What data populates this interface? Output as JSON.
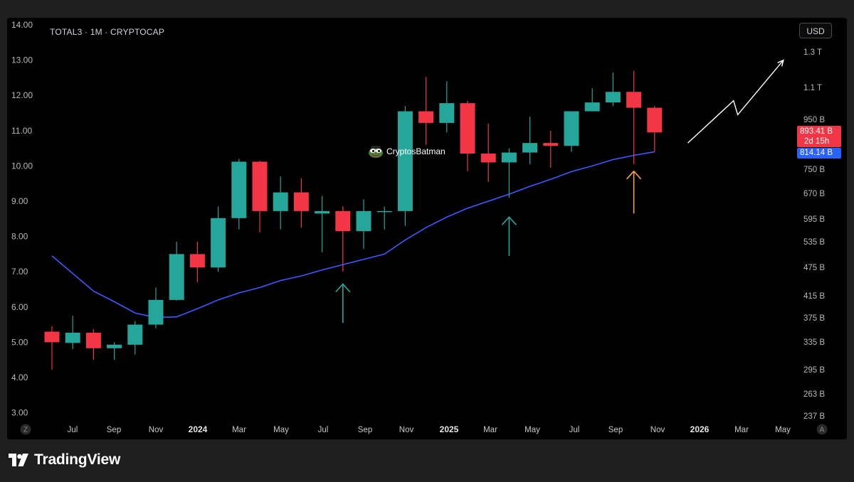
{
  "header": {
    "symbol_line": "TOTAL3 · 1M · CRYPTOCAP"
  },
  "currency_label": "USD",
  "watermark": "CryptosBatman",
  "brand": "TradingView",
  "price_tags": {
    "last_price": "893.41 B",
    "countdown": "2d 15h",
    "ma_value": "814.14 B"
  },
  "colors": {
    "up": "#26a69a",
    "down": "#f23645",
    "ma": "#3d5afe",
    "arrow_green": "#26a69a",
    "arrow_orange": "#f7a04b",
    "projection": "#ffffff"
  },
  "chart_data": {
    "type": "candlestick",
    "left_axis_ticks": [
      "14.00",
      "13.00",
      "12.00",
      "11.00",
      "10.00",
      "9.00",
      "8.00",
      "7.00",
      "6.00",
      "5.00",
      "4.00",
      "3.00"
    ],
    "right_axis_ticks": [
      "1.3 T",
      "1.1 T",
      "950 B",
      "750 B",
      "670 B",
      "595 B",
      "535 B",
      "475 B",
      "415 B",
      "375 B",
      "335 B",
      "295 B",
      "263 B",
      "237 B"
    ],
    "x_axis_labels": [
      "Jul",
      "Sep",
      "Nov",
      "2024",
      "Mar",
      "May",
      "Jul",
      "Sep",
      "Nov",
      "2025",
      "Mar",
      "May",
      "Jul",
      "Sep",
      "Nov",
      "2026",
      "Mar",
      "May"
    ],
    "year_labels": [
      "2024",
      "2025",
      "2026"
    ],
    "corner_left": "Z",
    "corner_right": "A",
    "candles": [
      {
        "o": 5.3,
        "h": 5.45,
        "l": 4.22,
        "c": 5.0
      },
      {
        "o": 4.98,
        "h": 5.75,
        "l": 4.8,
        "c": 5.27
      },
      {
        "o": 5.27,
        "h": 5.37,
        "l": 4.5,
        "c": 4.83
      },
      {
        "o": 4.83,
        "h": 5.0,
        "l": 4.5,
        "c": 4.93
      },
      {
        "o": 4.93,
        "h": 5.6,
        "l": 4.65,
        "c": 5.5
      },
      {
        "o": 5.5,
        "h": 6.55,
        "l": 5.4,
        "c": 6.2
      },
      {
        "o": 6.2,
        "h": 7.85,
        "l": 6.18,
        "c": 7.5
      },
      {
        "o": 7.5,
        "h": 7.85,
        "l": 6.7,
        "c": 7.12
      },
      {
        "o": 7.12,
        "h": 8.85,
        "l": 7.0,
        "c": 8.52
      },
      {
        "o": 8.52,
        "h": 10.2,
        "l": 8.2,
        "c": 10.12
      },
      {
        "o": 10.12,
        "h": 10.15,
        "l": 8.12,
        "c": 8.72
      },
      {
        "o": 8.72,
        "h": 9.7,
        "l": 8.2,
        "c": 9.25
      },
      {
        "o": 9.25,
        "h": 9.65,
        "l": 8.25,
        "c": 8.72
      },
      {
        "o": 8.65,
        "h": 9.15,
        "l": 7.55,
        "c": 8.72
      },
      {
        "o": 8.72,
        "h": 8.85,
        "l": 7.0,
        "c": 8.15
      },
      {
        "o": 8.15,
        "h": 9.05,
        "l": 7.65,
        "c": 8.72
      },
      {
        "o": 8.72,
        "h": 8.85,
        "l": 8.2,
        "c": 8.72
      },
      {
        "o": 8.72,
        "h": 11.7,
        "l": 8.3,
        "c": 11.55
      },
      {
        "o": 11.55,
        "h": 12.52,
        "l": 10.6,
        "c": 11.22
      },
      {
        "o": 11.22,
        "h": 12.4,
        "l": 10.95,
        "c": 11.78
      },
      {
        "o": 11.78,
        "h": 11.85,
        "l": 9.85,
        "c": 10.35
      },
      {
        "o": 10.35,
        "h": 11.2,
        "l": 9.55,
        "c": 10.1
      },
      {
        "o": 10.1,
        "h": 10.5,
        "l": 9.1,
        "c": 10.38
      },
      {
        "o": 10.38,
        "h": 11.4,
        "l": 10.05,
        "c": 10.65
      },
      {
        "o": 10.65,
        "h": 11.0,
        "l": 9.95,
        "c": 10.57
      },
      {
        "o": 10.57,
        "h": 11.55,
        "l": 10.4,
        "c": 11.55
      },
      {
        "o": 11.55,
        "h": 12.2,
        "l": 11.55,
        "c": 11.8
      },
      {
        "o": 11.8,
        "h": 12.65,
        "l": 11.7,
        "c": 12.1
      },
      {
        "o": 12.1,
        "h": 12.7,
        "l": 10.05,
        "c": 11.65
      },
      {
        "o": 11.65,
        "h": 11.7,
        "l": 10.4,
        "c": 10.95
      }
    ],
    "moving_average": [
      7.45,
      6.95,
      6.45,
      6.15,
      5.83,
      5.7,
      5.72,
      5.95,
      6.2,
      6.4,
      6.55,
      6.75,
      6.88,
      7.05,
      7.2,
      7.35,
      7.5,
      7.9,
      8.25,
      8.55,
      8.8,
      9.0,
      9.2,
      9.42,
      9.62,
      9.84,
      10.0,
      10.18,
      10.3,
      10.4
    ],
    "annotations": [
      {
        "type": "arrow-up",
        "color": "green",
        "candle_index": 14,
        "from": 5.55,
        "to": 6.65
      },
      {
        "type": "arrow-up",
        "color": "green",
        "candle_index": 22,
        "from": 7.45,
        "to": 8.55
      },
      {
        "type": "arrow-up",
        "color": "orange",
        "candle_index": 28,
        "from": 8.65,
        "to": 9.85
      },
      {
        "type": "projection-zigzag",
        "points": [
          [
            30.6,
            10.65
          ],
          [
            32.8,
            11.85
          ],
          [
            33.0,
            11.45
          ],
          [
            35.2,
            13.0
          ]
        ]
      }
    ]
  }
}
